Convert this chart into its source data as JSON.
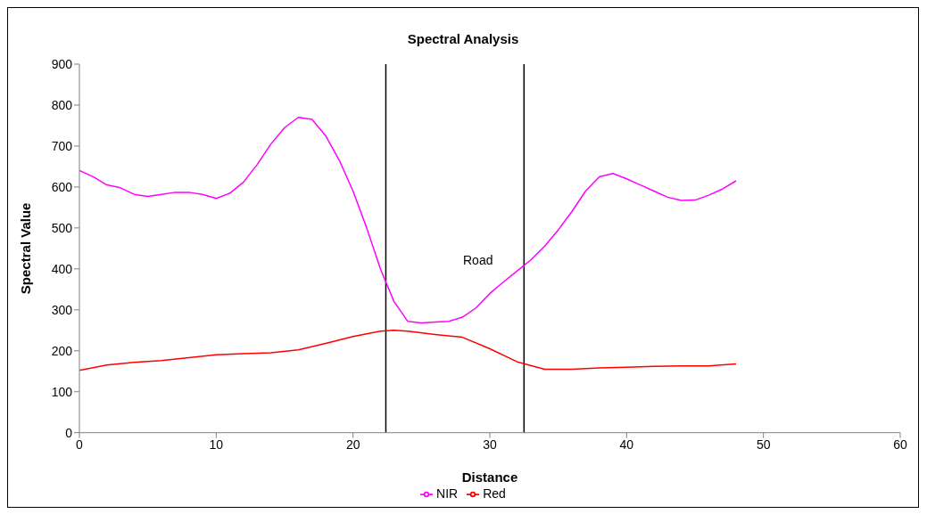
{
  "chart_data": {
    "type": "line",
    "title": "Spectral Analysis",
    "xlabel": "Distance",
    "ylabel": "Spectral Value",
    "xlim": [
      0,
      60
    ],
    "xticks": [
      0,
      10,
      20,
      30,
      40,
      50,
      60
    ],
    "ylim": [
      0,
      900
    ],
    "yticks": [
      0,
      100,
      200,
      300,
      400,
      500,
      600,
      700,
      800,
      900
    ],
    "grid": false,
    "legend": "bottom",
    "marker": "none",
    "line_style": "solid",
    "series": [
      {
        "name": "Red",
        "color": "#ff0000",
        "x": [
          0,
          2,
          4,
          6,
          8,
          10,
          12,
          14,
          16,
          18,
          20,
          22,
          23,
          24,
          26,
          28,
          30,
          32,
          34,
          36,
          38,
          40,
          42,
          44,
          46,
          48
        ],
        "values": [
          152,
          165,
          172,
          176,
          183,
          190,
          193,
          195,
          202,
          218,
          235,
          248,
          250,
          248,
          240,
          233,
          205,
          173,
          155,
          155,
          158,
          160,
          162,
          163,
          163,
          168
        ]
      },
      {
        "name": "NIR",
        "color": "#ff00ff",
        "x": [
          0,
          1,
          2,
          3,
          4,
          5,
          6,
          7,
          8,
          9,
          10,
          11,
          12,
          13,
          14,
          15,
          16,
          17,
          18,
          19,
          20,
          21,
          22,
          23,
          24,
          25,
          26,
          27,
          28,
          29,
          30,
          31,
          32,
          33,
          34,
          35,
          36,
          37,
          38,
          39,
          40,
          41,
          42,
          43,
          44,
          45,
          46,
          47,
          48
        ],
        "values": [
          640,
          625,
          605,
          598,
          582,
          577,
          582,
          587,
          587,
          582,
          572,
          585,
          612,
          655,
          705,
          745,
          770,
          765,
          725,
          665,
          590,
          500,
          400,
          320,
          272,
          268,
          270,
          272,
          282,
          305,
          340,
          368,
          395,
          422,
          455,
          495,
          540,
          590,
          625,
          633,
          620,
          605,
          590,
          575,
          567,
          568,
          580,
          595,
          615
        ]
      }
    ],
    "ref_lines": [
      {
        "axis": "x",
        "value": 22.4,
        "color": "#000000"
      },
      {
        "axis": "x",
        "value": 32.5,
        "color": "#000000"
      }
    ],
    "annotations": [
      "Road"
    ]
  }
}
